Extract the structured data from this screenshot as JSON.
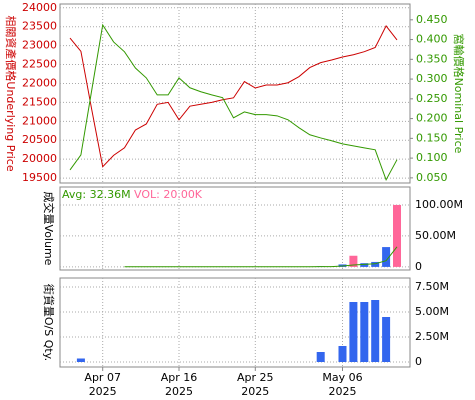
{
  "chart_data": [
    {
      "type": "line",
      "yaxis_side": "left",
      "ylabel": "相關資產價格Underlying Price",
      "y2label": "窩輪價格Nominal Price",
      "ylim": [
        19370,
        24100
      ],
      "yticks": [
        19500,
        20000,
        20500,
        21000,
        21500,
        22000,
        22500,
        23000,
        23500,
        24000
      ],
      "y2lim": [
        0.037,
        0.49
      ],
      "y2ticks": [
        {
          "value": 0.05,
          "label": "0.050"
        },
        {
          "value": 0.1,
          "label": "0.100"
        },
        {
          "value": 0.15,
          "label": "0.150"
        },
        {
          "value": 0.2,
          "label": "0.200"
        },
        {
          "value": 0.25,
          "label": "0.250"
        },
        {
          "value": 0.3,
          "label": "0.300"
        },
        {
          "value": 0.35,
          "label": "0.350"
        },
        {
          "value": 0.4,
          "label": "0.400"
        },
        {
          "value": 0.45,
          "label": "0.450"
        }
      ],
      "grid": true,
      "series": [
        {
          "color": "#cc0000",
          "values": [
            23200,
            22850,
            21300,
            19800,
            20100,
            20300,
            20770,
            20930,
            21450,
            21500,
            21040,
            21400,
            21450,
            21500,
            21570,
            21620,
            22050,
            21880,
            21960,
            21960,
            22020,
            22180,
            22420,
            22550,
            22620,
            22700,
            22760,
            22840,
            22950,
            23520,
            23150
          ]
        },
        {
          "color": "#339900",
          "axis": "y2",
          "values": [
            0.07,
            0.108,
            0.273,
            0.437,
            0.394,
            0.369,
            0.328,
            0.303,
            0.26,
            0.26,
            0.303,
            0.278,
            0.268,
            0.26,
            0.253,
            0.202,
            0.217,
            0.21,
            0.21,
            0.207,
            0.197,
            0.177,
            0.159,
            0.151,
            0.144,
            0.136,
            0.131,
            0.126,
            0.121,
            0.045,
            0.096
          ]
        }
      ]
    },
    {
      "type": "bar",
      "yaxis_side": "right",
      "ylabel": "成交量Volume",
      "ylim": [
        -5000000,
        129000000
      ],
      "yticks": [
        0,
        {
          "value": 50000000,
          "label": "50.00M"
        },
        {
          "value": 100000000,
          "label": "100.00M"
        }
      ],
      "grid": true,
      "annotations": [
        {
          "text": "Avg: 32.36M",
          "color": "#339900"
        },
        {
          "text": "VOL: 20.00K",
          "color": "#ff6699"
        }
      ],
      "values": [
        null,
        null,
        null,
        null,
        null,
        null,
        null,
        null,
        null,
        null,
        null,
        null,
        null,
        null,
        null,
        null,
        null,
        null,
        null,
        null,
        null,
        null,
        null,
        1000000,
        null,
        4000000,
        18000000,
        6000000,
        8000000,
        32000000,
        100000000
      ],
      "colors": [
        null,
        null,
        null,
        null,
        null,
        null,
        null,
        null,
        null,
        null,
        null,
        null,
        null,
        null,
        null,
        null,
        null,
        null,
        null,
        null,
        null,
        null,
        null,
        "#3366ee",
        null,
        "#3366ee",
        "#ff6699",
        "#3366ee",
        "#3366ee",
        "#3366ee",
        "#ff6699"
      ],
      "avg_color": "#339900",
      "avg_values": [
        null,
        null,
        null,
        null,
        null,
        300000,
        300000,
        300000,
        300000,
        300000,
        300000,
        300000,
        300000,
        300000,
        300000,
        300000,
        300000,
        300000,
        300000,
        300000,
        300000,
        300000,
        300000,
        400000,
        500000,
        1500000,
        3000000,
        4000000,
        5000000,
        10000000,
        32360000
      ]
    },
    {
      "type": "bar",
      "yaxis_side": "right",
      "ylabel": "街貨量O/S Qty.",
      "ylim": [
        -500000,
        8400000
      ],
      "yticks": [
        0,
        {
          "value": 2500000,
          "label": "2.50M"
        },
        {
          "value": 5000000,
          "label": "5.00M"
        },
        {
          "value": 7500000,
          "label": "7.50M"
        }
      ],
      "grid": true,
      "color": "#3366ee",
      "values": [
        null,
        350000,
        null,
        null,
        null,
        null,
        null,
        null,
        null,
        null,
        null,
        null,
        null,
        null,
        null,
        null,
        null,
        null,
        null,
        null,
        null,
        null,
        null,
        1000000,
        null,
        1600000,
        6000000,
        6000000,
        6200000,
        4500000,
        null
      ],
      "categories": [
        null,
        null,
        null,
        "Apr 07\n2025",
        null,
        null,
        null,
        null,
        null,
        null,
        "Apr 16\n2025",
        null,
        null,
        null,
        null,
        null,
        null,
        "Apr 25\n2025",
        null,
        null,
        null,
        null,
        null,
        null,
        null,
        "May 06\n2025",
        null,
        null,
        null,
        null,
        null
      ]
    }
  ]
}
